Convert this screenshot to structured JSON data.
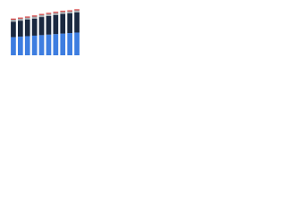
{
  "chart_data": {
    "type": "stacked-bar",
    "categories": [
      null,
      null,
      null,
      null,
      null,
      null,
      null,
      null,
      null,
      null
    ],
    "series": [
      {
        "color": "#3d7de0",
        "values": [
          35,
          36,
          37,
          38,
          39,
          40,
          41,
          42,
          43,
          44
        ]
      },
      {
        "color": "#1a2840",
        "values": [
          30,
          31,
          32,
          33,
          35,
          36,
          37,
          38,
          38,
          39
        ]
      },
      {
        "color": "#a7abb0",
        "values": [
          4,
          4,
          4,
          4,
          4,
          4,
          4,
          4,
          4,
          4
        ]
      },
      {
        "color": "#d63a3a",
        "values": [
          2,
          2,
          2,
          2,
          2,
          2,
          2,
          2,
          2,
          2
        ]
      }
    ],
    "ylim": [
      0,
      100
    ]
  }
}
